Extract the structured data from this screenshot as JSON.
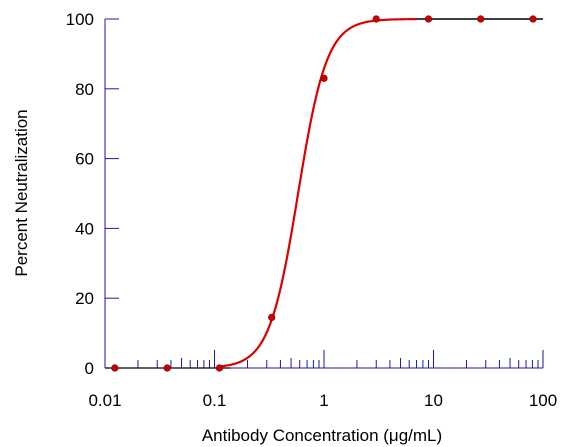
{
  "chart_data": {
    "type": "scatter",
    "title": "",
    "xlabel": "Antibody Concentration  (μg/mL)",
    "ylabel": "Percent Neutralization",
    "x_scale": "log",
    "xlim": [
      0.01,
      100
    ],
    "ylim": [
      0,
      100
    ],
    "x_ticks": [
      "0.01",
      "0.1",
      "1",
      "10",
      "100"
    ],
    "y_ticks": [
      "0",
      "20",
      "40",
      "60",
      "80",
      "100"
    ],
    "grid": false,
    "series": [
      {
        "x": [
          0.0123,
          0.037,
          0.111,
          0.333,
          1,
          3,
          9,
          27,
          81
        ],
        "y": [
          0,
          0,
          0,
          14.5,
          83,
          100,
          100,
          100,
          100
        ],
        "marker_color": "#cc0000"
      }
    ],
    "fit": {
      "type": "logistic",
      "ec50": 0.58,
      "hill_slope": 3.3,
      "bottom": 0,
      "top": 100,
      "color": "#dd0000"
    },
    "axis_color": "#1a1aa6",
    "plateau_line_color": "#000000"
  }
}
